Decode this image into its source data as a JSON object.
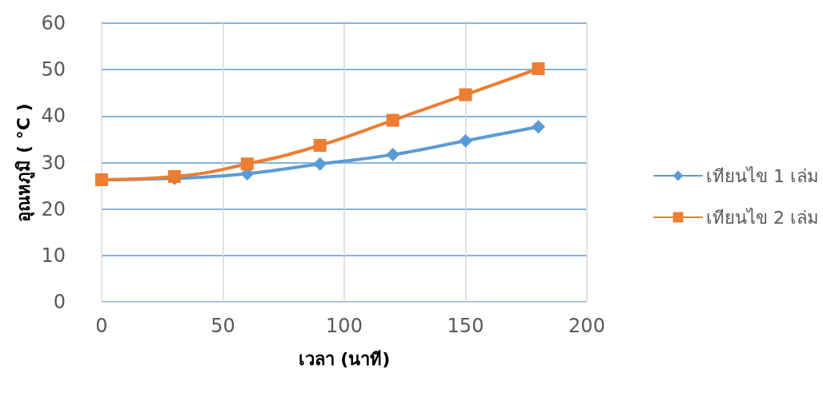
{
  "chart_data": {
    "type": "line",
    "xlabel": "เวลา (นาที)",
    "ylabel": "อุณหภูมิ ( °C )",
    "x": [
      0,
      30,
      60,
      90,
      120,
      150,
      180
    ],
    "series": [
      {
        "name": "เทียนไข 1 เล่ม",
        "color": "#5b9bd5",
        "marker": "diamond",
        "values": [
          26.3,
          26.6,
          27.6,
          29.7,
          31.7,
          34.7,
          37.7
        ]
      },
      {
        "name": "เทียนไข 2 เล่ม",
        "color": "#ed7d31",
        "marker": "square",
        "values": [
          26.3,
          27.0,
          29.7,
          33.7,
          39.1,
          44.6,
          50.2
        ]
      }
    ],
    "xlim": [
      0,
      200
    ],
    "xticks": [
      0,
      50,
      100,
      150,
      200
    ],
    "ylim": [
      0,
      60
    ],
    "yticks": [
      0,
      10,
      20,
      30,
      40,
      50,
      60
    ],
    "grid": true,
    "legend": "right"
  }
}
